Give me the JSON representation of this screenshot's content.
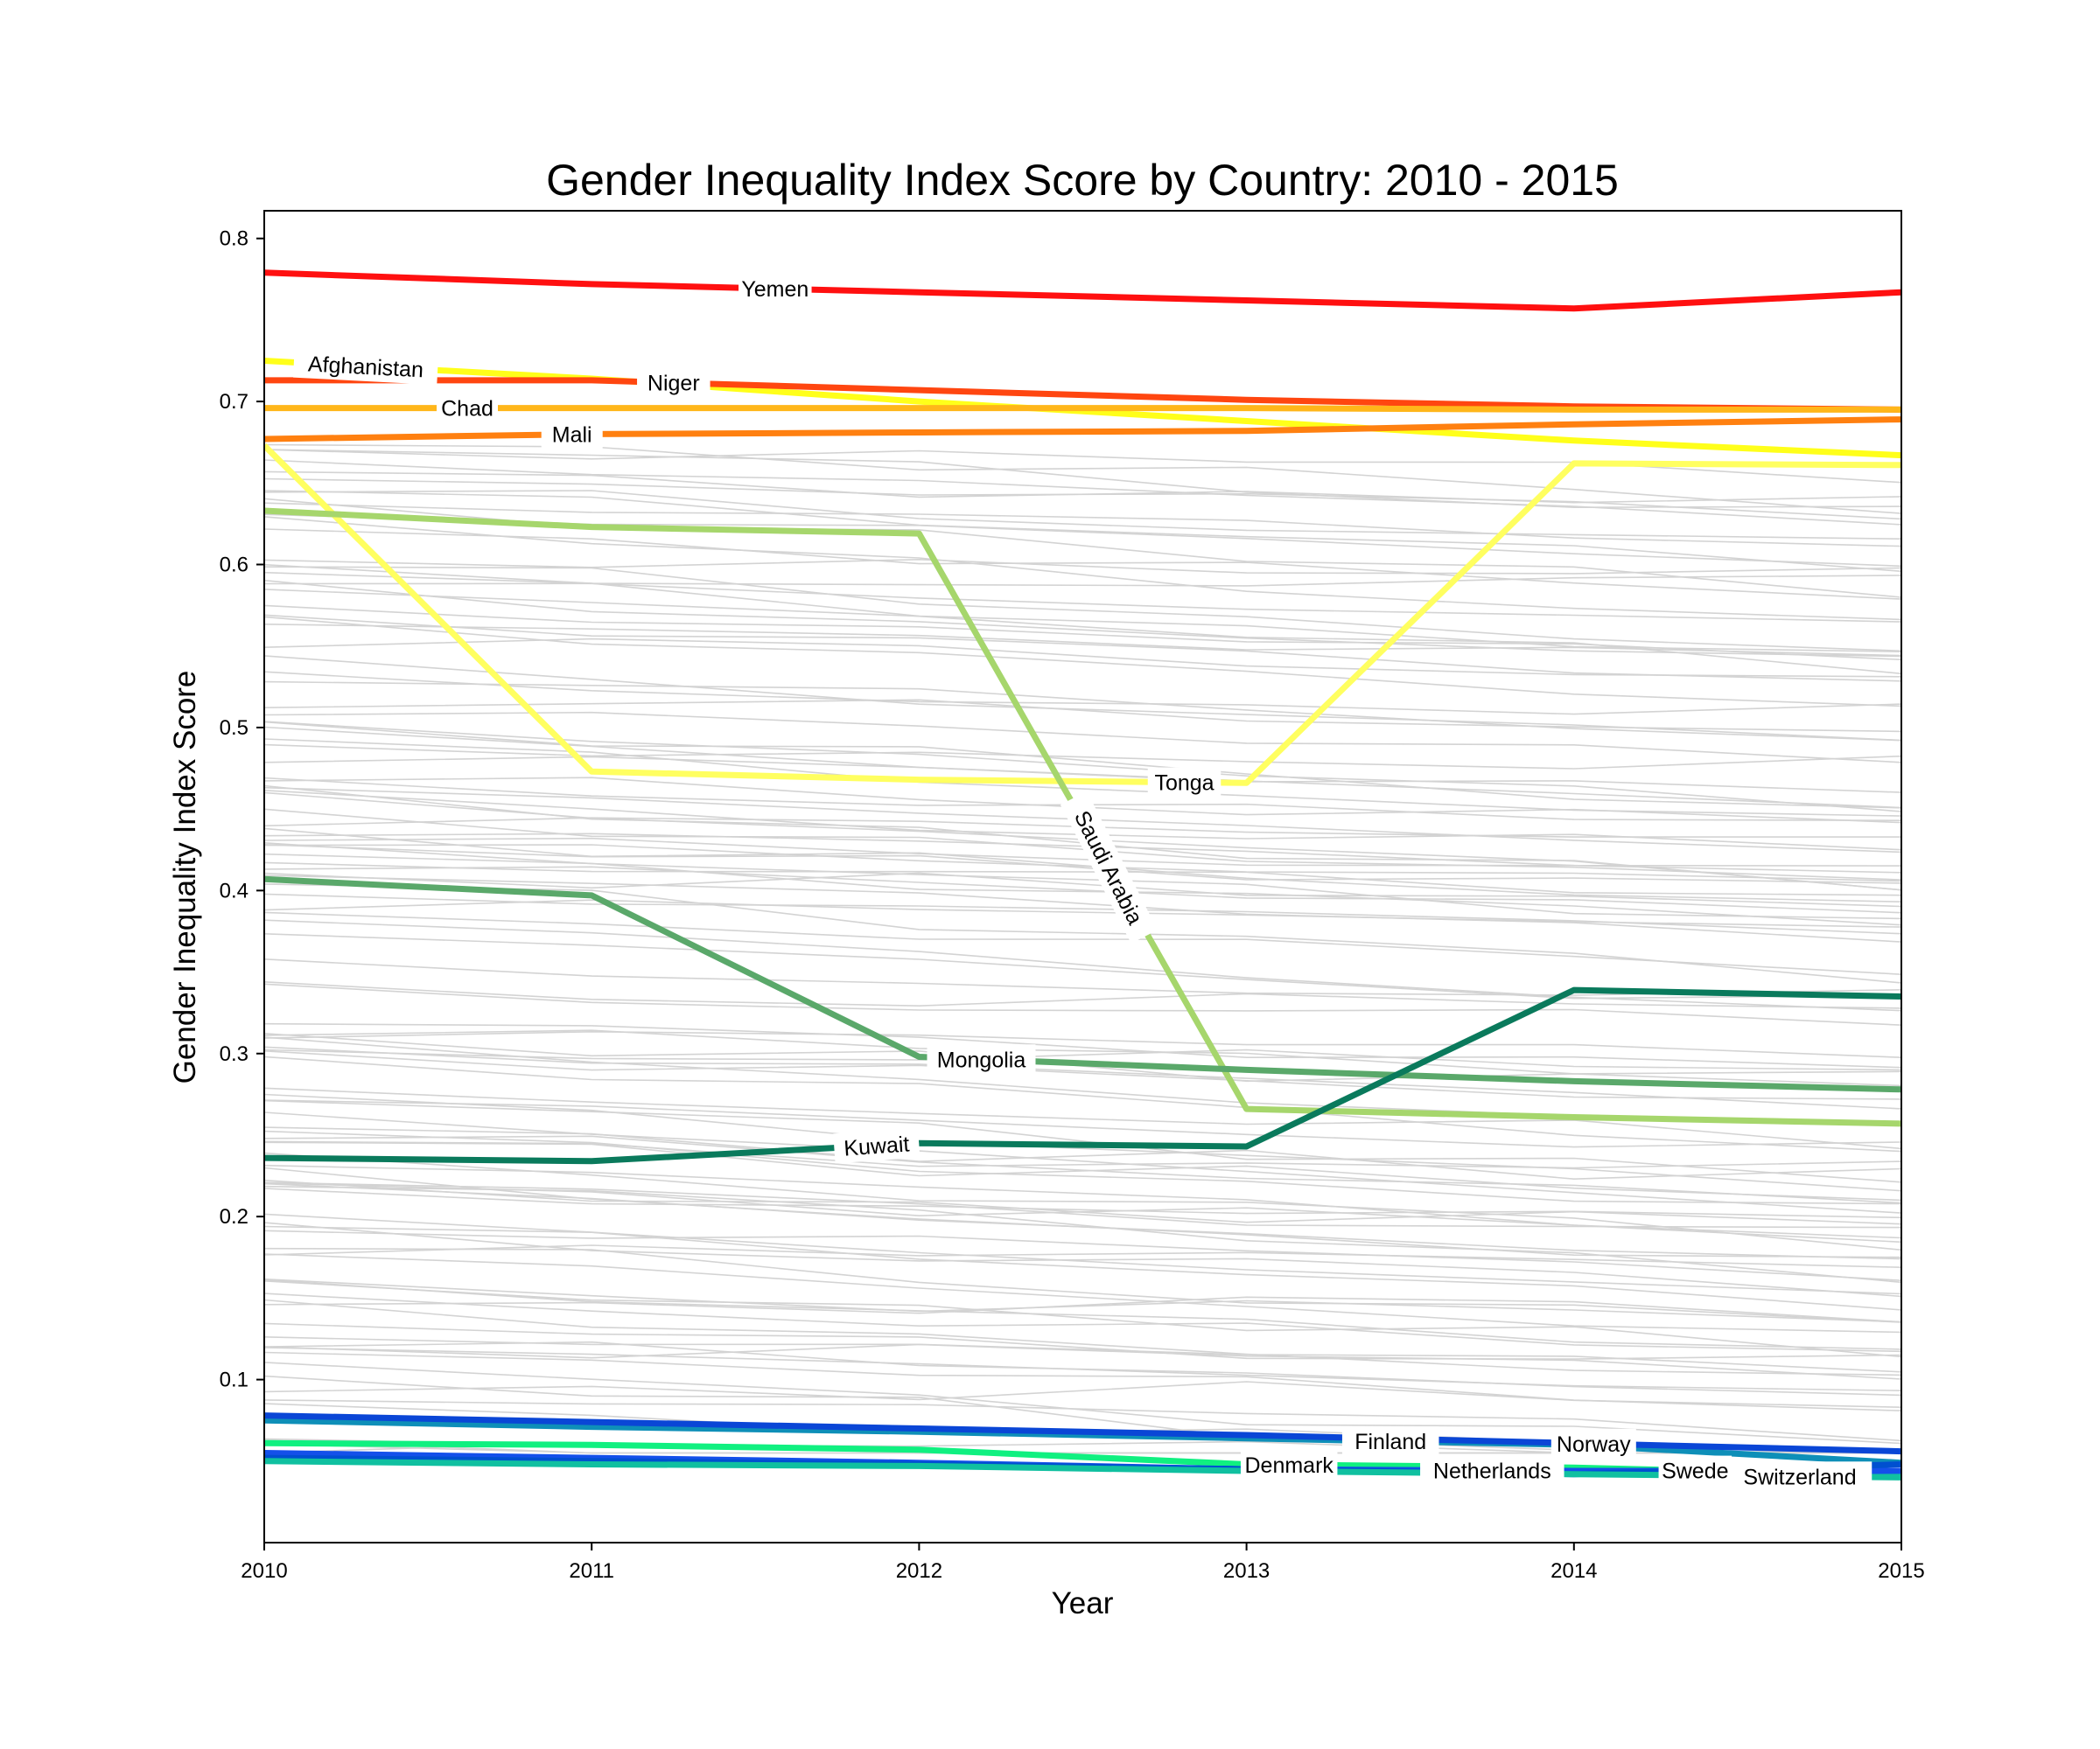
{
  "chart_data": {
    "type": "line",
    "title": "Gender Inequality Index Score by Country: 2010 - 2015",
    "xlabel": "Year",
    "ylabel": "Gender Inequality Index Score",
    "x": [
      2010,
      2011,
      2012,
      2013,
      2014,
      2015
    ],
    "xlim": [
      2010,
      2015
    ],
    "ylim": [
      0.0,
      0.817
    ],
    "xticks": [
      "2010",
      "2011",
      "2012",
      "2013",
      "2014",
      "2015"
    ],
    "yticks": [
      "0.1",
      "0.2",
      "0.3",
      "0.4",
      "0.5",
      "0.6",
      "0.7",
      "0.8"
    ],
    "grid": false,
    "legend": "none (inline labels on lines)",
    "series": [
      {
        "name": "Yemen",
        "color": "#ff1010",
        "values": [
          0.779,
          0.772,
          0.767,
          0.762,
          0.757,
          0.767
        ]
      },
      {
        "name": "Afghanistan",
        "color": "#ffff1a",
        "values": [
          0.725,
          0.714,
          0.7,
          0.688,
          0.676,
          0.667
        ]
      },
      {
        "name": "Niger",
        "color": "#ff4610",
        "values": [
          0.713,
          0.713,
          0.707,
          0.701,
          0.697,
          0.695
        ]
      },
      {
        "name": "Chad",
        "color": "#ffb61a",
        "values": [
          0.696,
          0.696,
          0.696,
          0.696,
          0.695,
          0.695
        ]
      },
      {
        "name": "Mali",
        "color": "#ff8010",
        "values": [
          0.677,
          0.68,
          0.681,
          0.682,
          0.686,
          0.689
        ]
      },
      {
        "name": "Tonga",
        "color": "#ffff60",
        "values": [
          0.673,
          0.473,
          0.468,
          0.466,
          0.662,
          0.661
        ]
      },
      {
        "name": "Saudi Arabia",
        "color": "#a6d66c",
        "values": [
          0.633,
          0.623,
          0.619,
          0.266,
          0.261,
          0.257
        ]
      },
      {
        "name": "Mongolia",
        "color": "#5aa86a",
        "values": [
          0.407,
          0.397,
          0.298,
          0.29,
          0.283,
          0.278
        ]
      },
      {
        "name": "Kuwait",
        "color": "#0a7a5c",
        "values": [
          0.236,
          0.234,
          0.245,
          0.243,
          0.339,
          0.335
        ]
      },
      {
        "name": "Finland",
        "color": "#0e8fb8",
        "values": [
          0.075,
          0.071,
          0.068,
          0.064,
          0.06,
          0.049
        ]
      },
      {
        "name": "Norway",
        "color": "#0a46d6",
        "values": [
          0.078,
          0.074,
          0.07,
          0.066,
          0.061,
          0.056
        ]
      },
      {
        "name": "Denmark",
        "color": "#10f080",
        "values": [
          0.061,
          0.06,
          0.057,
          0.048,
          0.046,
          0.041
        ]
      },
      {
        "name": "Netherlands",
        "color": "#1450ea",
        "values": [
          0.055,
          0.052,
          0.049,
          0.045,
          0.044,
          0.044
        ]
      },
      {
        "name": "Swede",
        "color": "#0050d0",
        "values": [
          0.052,
          0.05,
          0.048,
          0.045,
          0.042,
          0.048
        ]
      },
      {
        "name": "Switzerland",
        "color": "#10c0a0",
        "values": [
          0.05,
          0.048,
          0.047,
          0.044,
          0.042,
          0.04
        ]
      }
    ],
    "background_series_count": 120,
    "background_color": "#d3d3d3"
  }
}
